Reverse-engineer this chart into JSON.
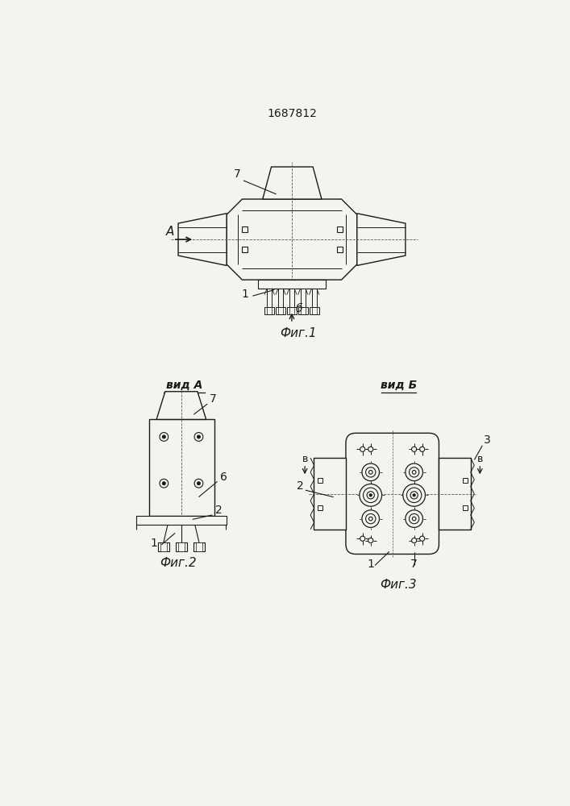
{
  "title": "1687812",
  "background_color": "#f5f3ef",
  "line_color": "#1a1a1a",
  "fig1_caption": "Фиг.1",
  "fig2_caption": "Фиг.2",
  "fig3_caption": "Фиг.3",
  "vid_a_label": "вид А",
  "vid_b_label": "вид Б",
  "label_A": "А",
  "label_b": "б",
  "label_B": "в",
  "label_1": "1",
  "label_2": "2",
  "label_3": "3",
  "label_6": "6",
  "label_7": "7"
}
